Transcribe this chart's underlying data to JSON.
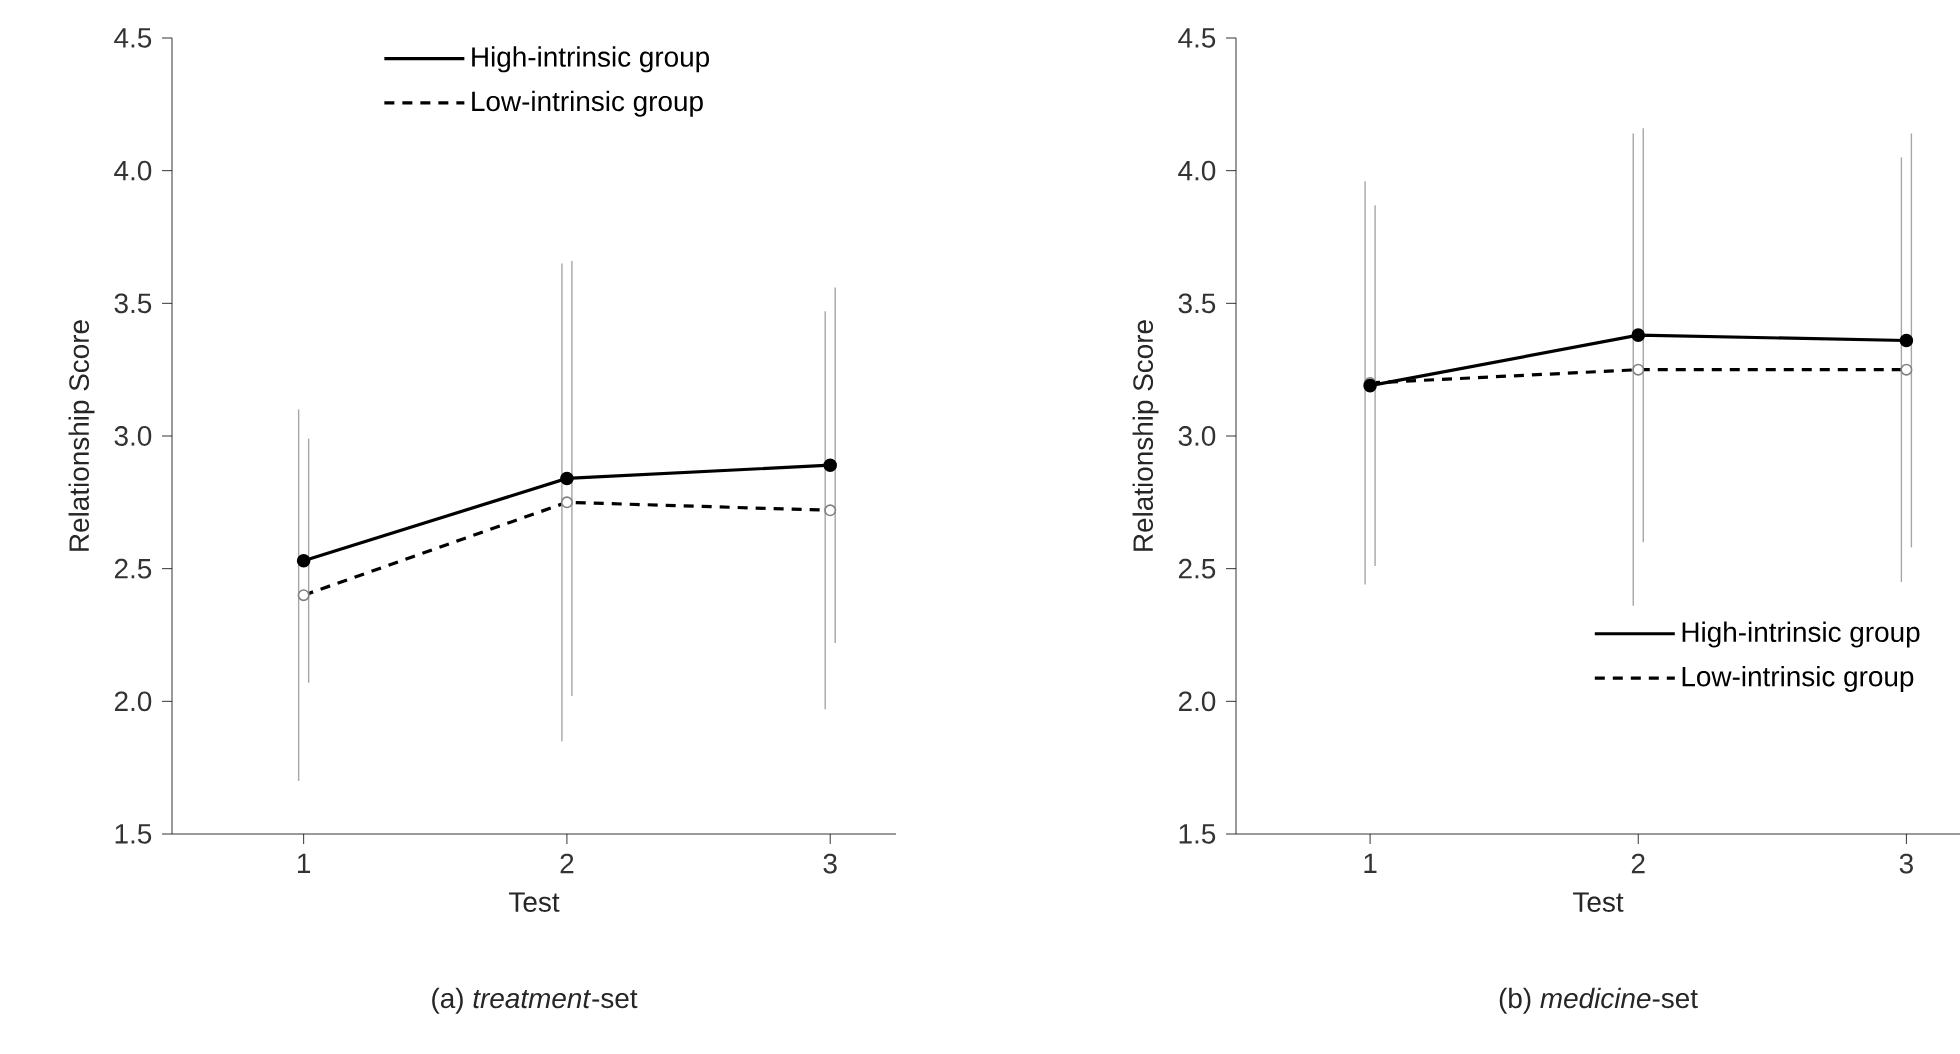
{
  "chart_data": [
    {
      "type": "line",
      "title": "(a)  *treatment*-set",
      "xlabel": "Test",
      "ylabel": "Relationship  Score",
      "x": [
        1,
        2,
        3
      ],
      "xlim": [
        0.5,
        3.25
      ],
      "ylim": [
        1.5,
        4.5
      ],
      "xticks": [
        1,
        2,
        3
      ],
      "yticks": [
        {
          "value": 1.5,
          "label": "1.5"
        },
        {
          "value": 2,
          "label": "2.0"
        },
        {
          "value": 2.5,
          "label": "2.5"
        },
        {
          "value": 3,
          "label": "3.0"
        },
        {
          "value": 3.5,
          "label": "3.5"
        },
        {
          "value": 4,
          "label": "4.0"
        },
        {
          "value": 4.5,
          "label": "4.5"
        }
      ],
      "marker": "circle",
      "legend": "top",
      "series": [
        {
          "name": "High-intrinsic  group",
          "color": "#000000",
          "line_style": "solid",
          "values": [
            2.53,
            2.84,
            2.89
          ],
          "errors": [
            0.46,
            0.82,
            0.67
          ]
        },
        {
          "name": "Low-intrinsic  group",
          "color": "#000000",
          "line_style": "dashed",
          "values": [
            2.4,
            2.75,
            2.72
          ],
          "errors": [
            0.7,
            0.9,
            0.75
          ]
        }
      ]
    },
    {
      "type": "line",
      "title": "(b)  *medicine*-set",
      "xlabel": "Test",
      "ylabel": "Relationship  Score",
      "x": [
        1,
        2,
        3
      ],
      "xlim": [
        0.5,
        3.2
      ],
      "ylim": [
        1.5,
        4.5
      ],
      "xticks": [
        1,
        2,
        3
      ],
      "yticks": [
        {
          "value": 1.5,
          "label": "1.5"
        },
        {
          "value": 2,
          "label": "2.0"
        },
        {
          "value": 2.5,
          "label": "2.5"
        },
        {
          "value": 3,
          "label": "3.0"
        },
        {
          "value": 3.5,
          "label": "3.5"
        },
        {
          "value": 4,
          "label": "4.0"
        },
        {
          "value": 4.5,
          "label": "4.5"
        }
      ],
      "marker": "circle",
      "legend": "bottom right",
      "series": [
        {
          "name": "High-intrinsic  group",
          "color": "#000000",
          "line_style": "solid",
          "values": [
            3.19,
            3.38,
            3.36
          ],
          "errors": [
            0.68,
            0.78,
            0.78
          ]
        },
        {
          "name": "Low-intrinsic  group",
          "color": "#000000",
          "line_style": "dashed",
          "values": [
            3.2,
            3.25,
            3.25
          ],
          "errors": [
            0.76,
            0.89,
            0.8
          ]
        }
      ]
    }
  ]
}
